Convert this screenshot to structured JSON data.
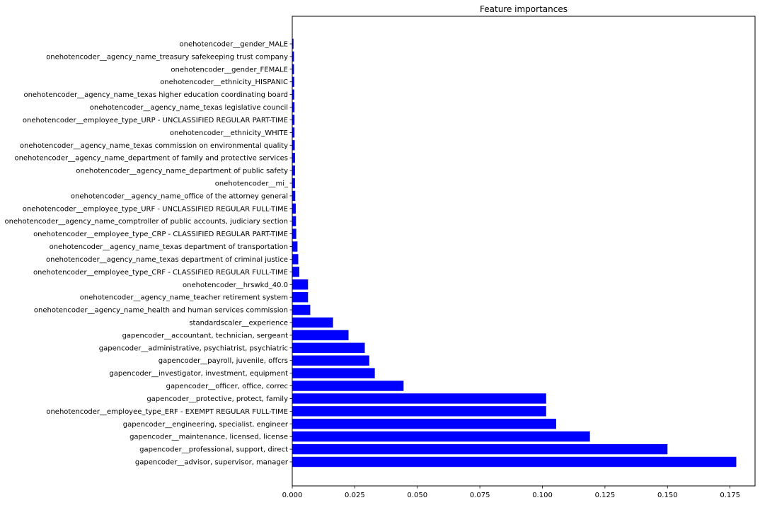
{
  "chart_data": {
    "type": "bar",
    "orientation": "horizontal",
    "title": "Feature importances",
    "xlabel": "",
    "ylabel": "",
    "xlim": [
      0,
      0.185
    ],
    "grid": false,
    "bar_color": "#0000ff",
    "xticks": [
      "0.000",
      "0.025",
      "0.050",
      "0.075",
      "0.100",
      "0.125",
      "0.150",
      "0.175"
    ],
    "xtick_values": [
      0,
      0.025,
      0.05,
      0.075,
      0.1,
      0.125,
      0.15,
      0.175
    ],
    "categories": [
      "onehotencoder__gender_MALE",
      "onehotencoder__agency_name_treasury safekeeping trust company",
      "onehotencoder__gender_FEMALE",
      "onehotencoder__ethnicity_HISPANIC",
      "onehotencoder__agency_name_texas higher education coordinating board",
      "onehotencoder__agency_name_texas legislative council",
      "onehotencoder__employee_type_URP - UNCLASSIFIED REGULAR PART-TIME",
      "onehotencoder__ethnicity_WHITE",
      "onehotencoder__agency_name_texas commission on environmental quality",
      "onehotencoder__agency_name_department of family and protective services",
      "onehotencoder__agency_name_department of public safety",
      "onehotencoder__mi_",
      "onehotencoder__agency_name_office of the attorney general",
      "onehotencoder__employee_type_URF - UNCLASSIFIED REGULAR FULL-TIME",
      "onehotencoder__agency_name_comptroller of public accounts, judiciary section",
      "onehotencoder__employee_type_CRP - CLASSIFIED REGULAR PART-TIME",
      "onehotencoder__agency_name_texas department of transportation",
      "onehotencoder__agency_name_texas department of criminal justice",
      "onehotencoder__employee_type_CRF - CLASSIFIED REGULAR FULL-TIME",
      "onehotencoder__hrswkd_40.0",
      "onehotencoder__agency_name_teacher retirement system",
      "onehotencoder__agency_name_health and human services commission",
      "standardscaler__experience",
      "gapencoder__accountant, technician, sergeant",
      "gapencoder__administrative, psychiatrist, psychiatric",
      "gapencoder__payroll, juvenile, offcrs",
      "gapencoder__investigator, investment, equipment",
      "gapencoder__officer, office, correc",
      "gapencoder__protective, protect, family",
      "onehotencoder__employee_type_ERF - EXEMPT REGULAR FULL-TIME",
      "gapencoder__engineering, specialist, engineer",
      "gapencoder__maintenance, licensed, license",
      "gapencoder__professional, support, direct",
      "gapencoder__advisor, supervisor, manager"
    ],
    "values": [
      0.0005,
      0.0007,
      0.0007,
      0.0008,
      0.0008,
      0.0009,
      0.0009,
      0.0009,
      0.001,
      0.0011,
      0.0011,
      0.0011,
      0.0012,
      0.0014,
      0.0015,
      0.0016,
      0.0021,
      0.0024,
      0.0028,
      0.0063,
      0.0063,
      0.0072,
      0.0163,
      0.0225,
      0.029,
      0.0308,
      0.033,
      0.0445,
      0.1015,
      0.1015,
      0.1055,
      0.119,
      0.15,
      0.1775
    ]
  }
}
